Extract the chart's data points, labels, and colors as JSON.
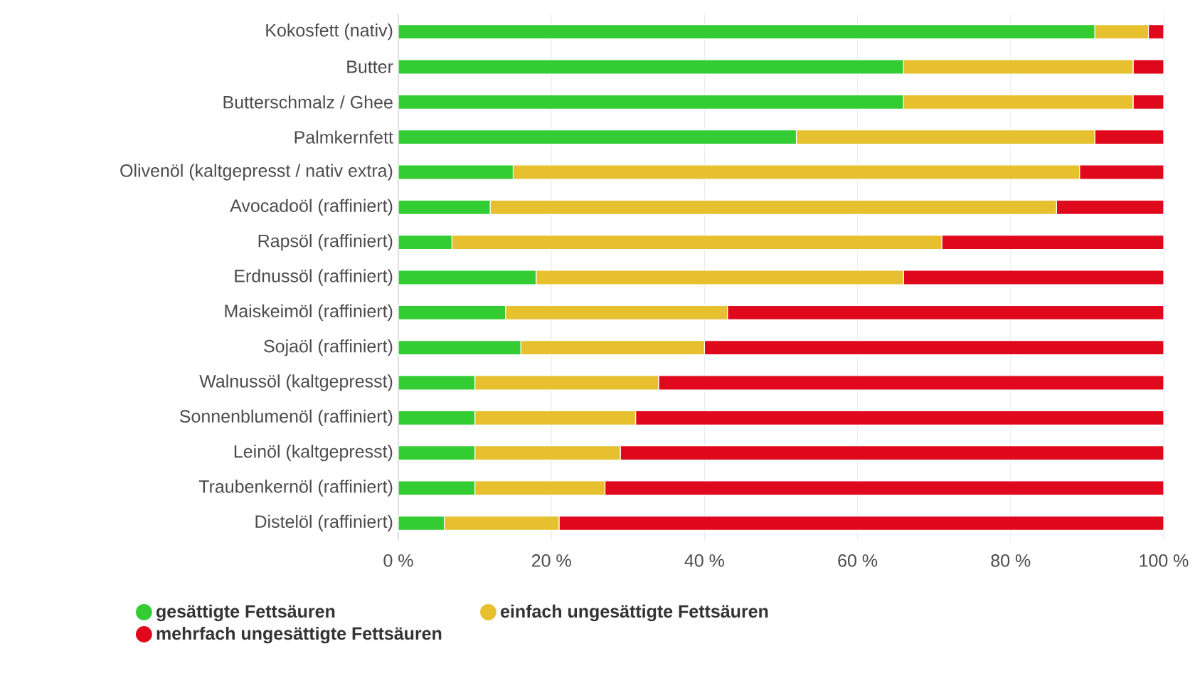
{
  "chart_data": {
    "type": "bar",
    "orientation": "horizontal",
    "stacked": true,
    "categories": [
      "Kokosfett (nativ)",
      "Butter",
      "Butterschmalz / Ghee",
      "Palmkernfett",
      "Olivenöl (kaltgepresst / nativ extra)",
      "Avocadoöl (raffiniert)",
      "Rapsöl (raffiniert)",
      "Erdnussöl (raffiniert)",
      "Maiskeimöl (raffiniert)",
      "Sojaöl (raffiniert)",
      "Walnussöl (kaltgepresst)",
      "Sonnenblumenöl (raffiniert)",
      "Leinöl (kaltgepresst)",
      "Traubenkernöl (raffiniert)",
      "Distelöl (raffiniert)"
    ],
    "series": [
      {
        "name": "gesättigte Fettsäuren",
        "color": "#33cc33",
        "values": [
          91,
          66,
          66,
          52,
          15,
          12,
          7,
          18,
          14,
          16,
          10,
          10,
          10,
          10,
          6
        ]
      },
      {
        "name": "einfach ungesättigte Fettsäuren",
        "color": "#e6c02e",
        "values": [
          7,
          30,
          30,
          39,
          74,
          74,
          64,
          48,
          29,
          24,
          24,
          21,
          19,
          17,
          15
        ]
      },
      {
        "name": "mehrfach ungesättigte Fettsäuren",
        "color": "#e0081c",
        "values": [
          2,
          4,
          4,
          9,
          11,
          14,
          29,
          34,
          57,
          60,
          66,
          69,
          71,
          73,
          79
        ]
      }
    ],
    "xlim": [
      0,
      100
    ],
    "xticks": [
      {
        "value": 0,
        "label": "0 %"
      },
      {
        "value": 20,
        "label": "20 %"
      },
      {
        "value": 40,
        "label": "40 %"
      },
      {
        "value": 60,
        "label": "60 %"
      },
      {
        "value": 80,
        "label": "80 %"
      },
      {
        "value": 100,
        "label": "100 %"
      }
    ],
    "grid": "x",
    "legend": "bottom"
  }
}
